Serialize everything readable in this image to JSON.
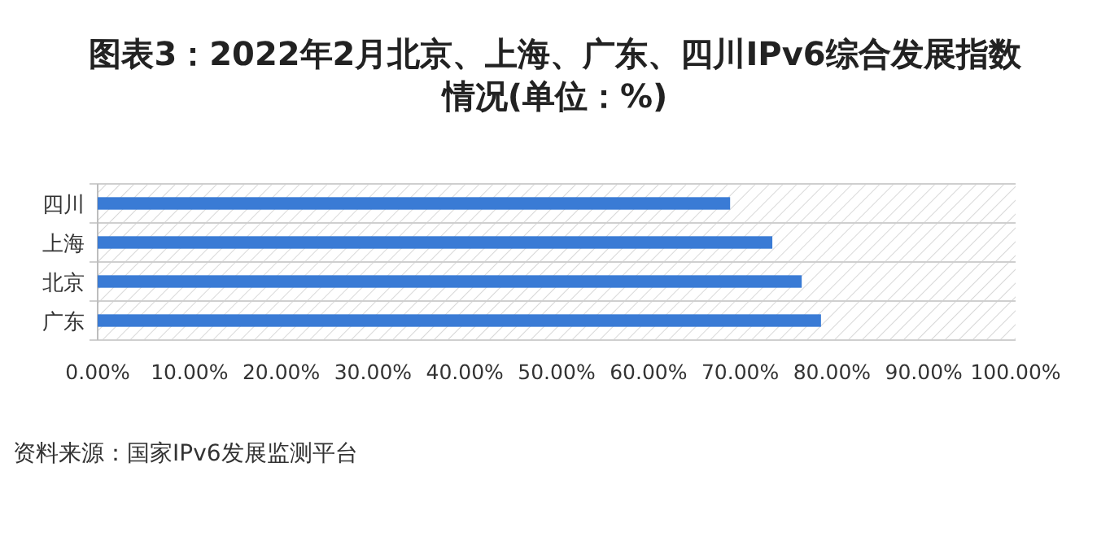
{
  "chart_data": {
    "type": "bar",
    "orientation": "horizontal",
    "title": "图表3：2022年2月北京、上海、广东、四川IPv6综合发展指数情况(单位：%)",
    "categories": [
      "四川",
      "上海",
      "北京",
      "广东"
    ],
    "values": [
      68.9,
      73.5,
      76.7,
      78.8
    ],
    "color": "#3a7bd5",
    "xlim": [
      0,
      100
    ],
    "xticks": [
      {
        "value": 0,
        "label": "0.00%"
      },
      {
        "value": 10,
        "label": "10.00%"
      },
      {
        "value": 20,
        "label": "20.00%"
      },
      {
        "value": 30,
        "label": "30.00%"
      },
      {
        "value": 40,
        "label": "40.00%"
      },
      {
        "value": 50,
        "label": "50.00%"
      },
      {
        "value": 60,
        "label": "60.00%"
      },
      {
        "value": 70,
        "label": "70.00%"
      },
      {
        "value": 80,
        "label": "80.00%"
      },
      {
        "value": 90,
        "label": "90.00%"
      },
      {
        "value": 100,
        "label": "100.00%"
      }
    ],
    "annotations": [
      "资料来源：国家IPv6发展监测平台"
    ]
  }
}
